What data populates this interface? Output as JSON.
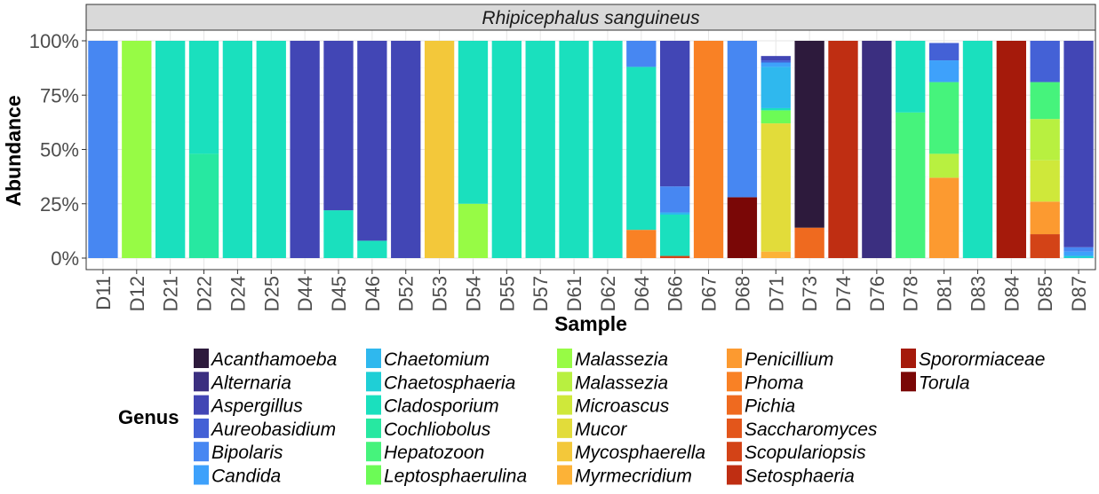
{
  "chart_data": {
    "type": "bar",
    "stacked": true,
    "title": "Rhipicephalus sanguineus",
    "xlabel": "Sample",
    "ylabel": "Abundance",
    "legend_title": "Genus",
    "legend_position": "bottom",
    "ylim": [
      0,
      1
    ],
    "yticks": [
      "0%",
      "25%",
      "50%",
      "75%",
      "100%"
    ],
    "categories": [
      "D11",
      "D12",
      "D21",
      "D22",
      "D24",
      "D25",
      "D44",
      "D45",
      "D46",
      "D52",
      "D53",
      "D54",
      "D55",
      "D57",
      "D61",
      "D62",
      "D64",
      "D66",
      "D67",
      "D68",
      "D71",
      "D73",
      "D74",
      "D76",
      "D78",
      "D81",
      "D83",
      "D84",
      "D85",
      "D87"
    ],
    "genera": [
      {
        "name": "Acanthamoeba",
        "color": "#2d1a3c"
      },
      {
        "name": "Alternaria",
        "color": "#3b2f80"
      },
      {
        "name": "Aspergillus",
        "color": "#4246b5"
      },
      {
        "name": "Aureobasidium",
        "color": "#4461d6"
      },
      {
        "name": "Bipolaris",
        "color": "#4787f2"
      },
      {
        "name": "Candida",
        "color": "#3ea1fb"
      },
      {
        "name": "Chaetomium",
        "color": "#2fb8ee"
      },
      {
        "name": "Chaetosphaeria",
        "color": "#1fcfd6"
      },
      {
        "name": "Cladosporium",
        "color": "#1ae0be"
      },
      {
        "name": "Cochliobolus",
        "color": "#27e8a1"
      },
      {
        "name": "Hepatozoon",
        "color": "#46f37c"
      },
      {
        "name": "Leptosphaerulina",
        "color": "#6cfb56"
      },
      {
        "name": "Malassezia",
        "color": "#97fb45"
      },
      {
        "name": "Malassezia",
        "color": "#b8f040"
      },
      {
        "name": "Microascus",
        "color": "#cfe83a"
      },
      {
        "name": "Mucor",
        "color": "#e2dc3a"
      },
      {
        "name": "Mycosphaerella",
        "color": "#f3c83a"
      },
      {
        "name": "Myrmecridium",
        "color": "#fcb237"
      },
      {
        "name": "Penicillium",
        "color": "#fc9a30"
      },
      {
        "name": "Phoma",
        "color": "#f98125"
      },
      {
        "name": "Pichia",
        "color": "#ef6a1f"
      },
      {
        "name": "Saccharomyces",
        "color": "#e3561b"
      },
      {
        "name": "Scopulariopsis",
        "color": "#d34317"
      },
      {
        "name": "Setosphaeria",
        "color": "#bf2e12"
      },
      {
        "name": "Sporormiaceae",
        "color": "#a51a0b"
      },
      {
        "name": "Torula",
        "color": "#7a0706"
      }
    ],
    "series": [
      {
        "name": "Acanthamoeba",
        "values": [
          0,
          0,
          0,
          0,
          0,
          0,
          0,
          0,
          0,
          0,
          0,
          0,
          0,
          0,
          0,
          0,
          0,
          0,
          0,
          0,
          0,
          0.86,
          0,
          0,
          0,
          0,
          0,
          0,
          0,
          0
        ]
      },
      {
        "name": "Alternaria",
        "values": [
          0,
          0,
          0,
          0,
          0,
          0,
          0,
          0,
          0,
          0,
          0,
          0,
          0,
          0,
          0,
          0,
          0,
          0,
          0,
          0,
          0,
          0,
          0,
          1,
          0,
          0,
          0,
          0,
          0,
          0
        ]
      },
      {
        "name": "Aspergillus",
        "values": [
          0,
          0,
          0,
          0,
          0,
          0,
          1,
          0.78,
          0.92,
          1,
          0,
          0,
          0,
          0,
          0,
          0,
          0,
          0.67,
          0,
          0,
          0.02,
          0,
          0,
          0,
          0,
          0,
          0,
          0,
          0,
          0.95
        ]
      },
      {
        "name": "Aureobasidium",
        "values": [
          0,
          0,
          0,
          0,
          0,
          0,
          0,
          0,
          0,
          0,
          0,
          0,
          0,
          0,
          0,
          0,
          0,
          0,
          0,
          0,
          0.01,
          0,
          0,
          0,
          0,
          0.08,
          0,
          0,
          0.19,
          0
        ]
      },
      {
        "name": "Bipolaris",
        "values": [
          1,
          0,
          0,
          0,
          0,
          0,
          0,
          0,
          0,
          0,
          0,
          0,
          0,
          0,
          0,
          0,
          0.12,
          0.12,
          0,
          0.72,
          0,
          0,
          0,
          0,
          0,
          0,
          0,
          0,
          0,
          0.02
        ]
      },
      {
        "name": "Candida",
        "values": [
          0,
          0,
          0,
          0,
          0,
          0,
          0,
          0,
          0,
          0,
          0,
          0,
          0,
          0,
          0,
          0,
          0,
          0,
          0,
          0,
          0.02,
          0,
          0,
          0,
          0,
          0.1,
          0,
          0,
          0,
          0.02
        ]
      },
      {
        "name": "Chaetomium",
        "values": [
          0,
          0,
          0,
          0,
          0,
          0,
          0,
          0,
          0,
          0,
          0,
          0,
          0,
          0,
          0,
          0,
          0,
          0.01,
          0,
          0,
          0.19,
          0,
          0,
          0,
          0,
          0,
          0,
          0,
          0,
          0
        ]
      },
      {
        "name": "Chaetosphaeria",
        "values": [
          0,
          0,
          0,
          0,
          0,
          0,
          0,
          0,
          0,
          0,
          0,
          0,
          0,
          0,
          0,
          0,
          0,
          0,
          0,
          0,
          0,
          0,
          0,
          0,
          0,
          0,
          0,
          0,
          0,
          0.01
        ]
      },
      {
        "name": "Cladosporium",
        "values": [
          0,
          0,
          1,
          0.52,
          1,
          1,
          0,
          0.22,
          0.08,
          0,
          0,
          0.75,
          1,
          1,
          1,
          1,
          0.75,
          0.19,
          0,
          0,
          0.01,
          0,
          0,
          0,
          0.33,
          0,
          1,
          0,
          0,
          0
        ]
      },
      {
        "name": "Cochliobolus",
        "values": [
          0,
          0,
          0,
          0.48,
          0,
          0,
          0,
          0,
          0,
          0,
          0,
          0,
          0,
          0,
          0,
          0,
          0,
          0,
          0,
          0,
          0,
          0,
          0,
          0,
          0,
          0,
          0,
          0,
          0,
          0
        ]
      },
      {
        "name": "Hepatozoon",
        "values": [
          0,
          0,
          0,
          0,
          0,
          0,
          0,
          0,
          0,
          0,
          0,
          0,
          0,
          0,
          0,
          0,
          0,
          0,
          0,
          0,
          0,
          0,
          0,
          0,
          0.67,
          0.33,
          0,
          0,
          0.17,
          0
        ]
      },
      {
        "name": "Leptosphaerulina",
        "values": [
          0,
          0,
          0,
          0,
          0,
          0,
          0,
          0,
          0,
          0,
          0,
          0,
          0,
          0,
          0,
          0,
          0,
          0,
          0,
          0,
          0.06,
          0,
          0,
          0,
          0,
          0,
          0,
          0,
          0,
          0
        ]
      },
      {
        "name": "Malassezia",
        "values": [
          0,
          1,
          0,
          0,
          0,
          0,
          0,
          0,
          0,
          0,
          0,
          0.25,
          0,
          0,
          0,
          0,
          0,
          0,
          0,
          0,
          0,
          0,
          0,
          0,
          0,
          0,
          0,
          0,
          0,
          0
        ]
      },
      {
        "name": "Malassezia",
        "values": [
          0,
          0,
          0,
          0,
          0,
          0,
          0,
          0,
          0,
          0,
          0,
          0,
          0,
          0,
          0,
          0,
          0,
          0,
          0,
          0,
          0,
          0,
          0,
          0,
          0,
          0.11,
          0,
          0,
          0.19,
          0
        ]
      },
      {
        "name": "Microascus",
        "values": [
          0,
          0,
          0,
          0,
          0,
          0,
          0,
          0,
          0,
          0,
          0,
          0,
          0,
          0,
          0,
          0,
          0,
          0,
          0,
          0,
          0,
          0,
          0,
          0,
          0,
          0,
          0,
          0,
          0.19,
          0
        ]
      },
      {
        "name": "Mucor",
        "values": [
          0,
          0,
          0,
          0,
          0,
          0,
          0,
          0,
          0,
          0,
          0,
          0,
          0,
          0,
          0,
          0,
          0,
          0,
          0,
          0,
          0.59,
          0,
          0,
          0,
          0,
          0,
          0,
          0,
          0,
          0
        ]
      },
      {
        "name": "Mycosphaerella",
        "values": [
          0,
          0,
          0,
          0,
          0,
          0,
          0,
          0,
          0,
          0,
          1,
          0,
          0,
          0,
          0,
          0,
          0,
          0,
          0,
          0,
          0,
          0,
          0,
          0,
          0,
          0,
          0,
          0,
          0,
          0
        ]
      },
      {
        "name": "Myrmecridium",
        "values": [
          0,
          0,
          0,
          0,
          0,
          0,
          0,
          0,
          0,
          0,
          0,
          0,
          0,
          0,
          0,
          0,
          0,
          0,
          0,
          0,
          0.03,
          0,
          0,
          0,
          0,
          0,
          0,
          0,
          0,
          0
        ]
      },
      {
        "name": "Penicillium",
        "values": [
          0,
          0,
          0,
          0,
          0,
          0,
          0,
          0,
          0,
          0,
          0,
          0,
          0,
          0,
          0,
          0,
          0,
          0,
          0,
          0,
          0,
          0,
          0,
          0,
          0,
          0.37,
          0,
          0,
          0.15,
          0
        ]
      },
      {
        "name": "Phoma",
        "values": [
          0,
          0,
          0,
          0,
          0,
          0,
          0,
          0,
          0,
          0,
          0,
          0,
          0,
          0,
          0,
          0,
          0.13,
          0,
          1,
          0,
          0,
          0,
          0,
          0,
          0,
          0,
          0,
          0,
          0,
          0
        ]
      },
      {
        "name": "Pichia",
        "values": [
          0,
          0,
          0,
          0,
          0,
          0,
          0,
          0,
          0,
          0,
          0,
          0,
          0,
          0,
          0,
          0,
          0,
          0,
          0,
          0,
          0,
          0.14,
          0,
          0,
          0,
          0,
          0,
          0,
          0,
          0
        ]
      },
      {
        "name": "Saccharomyces",
        "values": [
          0,
          0,
          0,
          0,
          0,
          0,
          0,
          0,
          0,
          0,
          0,
          0,
          0,
          0,
          0,
          0,
          0,
          0,
          0,
          0,
          0,
          0,
          0,
          0,
          0,
          0,
          0,
          0,
          0,
          0
        ]
      },
      {
        "name": "Scopulariopsis",
        "values": [
          0,
          0,
          0,
          0,
          0,
          0,
          0,
          0,
          0,
          0,
          0,
          0,
          0,
          0,
          0,
          0,
          0,
          0.01,
          0,
          0,
          0,
          0,
          0,
          0,
          0,
          0,
          0,
          0,
          0.11,
          0
        ]
      },
      {
        "name": "Setosphaeria",
        "values": [
          0,
          0,
          0,
          0,
          0,
          0,
          0,
          0,
          0,
          0,
          0,
          0,
          0,
          0,
          0,
          0,
          0,
          0,
          0,
          0,
          0,
          0,
          1,
          0,
          0,
          0,
          0,
          0,
          0,
          0
        ]
      },
      {
        "name": "Sporormiaceae",
        "values": [
          0,
          0,
          0,
          0,
          0,
          0,
          0,
          0,
          0,
          0,
          0,
          0,
          0,
          0,
          0,
          0,
          0,
          0,
          0,
          0,
          0,
          0,
          0,
          0,
          0,
          0,
          0,
          1,
          0,
          0
        ]
      },
      {
        "name": "Torula",
        "values": [
          0,
          0,
          0,
          0,
          0,
          0,
          0,
          0,
          0,
          0,
          0,
          0,
          0,
          0,
          0,
          0,
          0,
          0,
          0,
          0.28,
          0,
          0,
          0,
          0,
          0,
          0,
          0,
          0,
          0,
          0
        ]
      }
    ]
  }
}
